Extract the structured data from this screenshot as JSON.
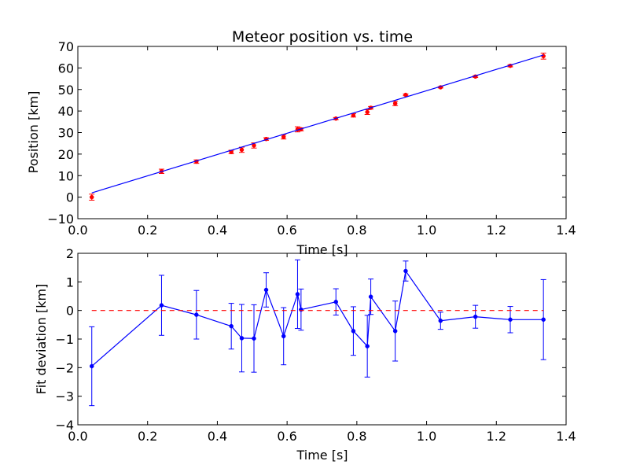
{
  "chart_data": [
    {
      "type": "scatter",
      "title": "Meteor position vs. time",
      "xlabel": "Time [s]",
      "ylabel": "Position [km]",
      "xlim": [
        0.0,
        1.4
      ],
      "ylim": [
        -10,
        70
      ],
      "xticks": [
        "0.0",
        "0.2",
        "0.4",
        "0.6",
        "0.8",
        "1.0",
        "1.2",
        "1.4"
      ],
      "yticks": [
        "−10",
        "0",
        "10",
        "20",
        "30",
        "40",
        "50",
        "60",
        "70"
      ],
      "grid": false,
      "series": [
        {
          "kind": "errorbar-points",
          "color": "#ff0000",
          "x": [
            0.04,
            0.24,
            0.34,
            0.44,
            0.47,
            0.505,
            0.54,
            0.59,
            0.63,
            0.64,
            0.74,
            0.79,
            0.83,
            0.84,
            0.91,
            0.94,
            1.04,
            1.14,
            1.24,
            1.335
          ],
          "y": [
            0.0,
            12.0,
            16.5,
            21.0,
            22.0,
            24.0,
            27.0,
            28.0,
            31.5,
            31.5,
            36.5,
            38.0,
            39.5,
            41.5,
            43.5,
            47.5,
            51.0,
            56.0,
            61.0,
            65.5
          ],
          "err": [
            1.4,
            1.0,
            0.8,
            0.8,
            1.2,
            1.2,
            0.6,
            1.0,
            1.2,
            0.7,
            0.5,
            0.8,
            1.1,
            0.6,
            1.0,
            0.4,
            0.3,
            0.4,
            0.5,
            1.4
          ]
        },
        {
          "kind": "line",
          "color": "#0000ff",
          "x": [
            0.04,
            1.335
          ],
          "y": [
            2.0,
            66.0
          ]
        }
      ]
    },
    {
      "type": "line",
      "title": "",
      "xlabel": "Time [s]",
      "ylabel": "Fit deviation [km]",
      "xlim": [
        0.0,
        1.4
      ],
      "ylim": [
        -4,
        2
      ],
      "xticks": [
        "0.0",
        "0.2",
        "0.4",
        "0.6",
        "0.8",
        "1.0",
        "1.2",
        "1.4"
      ],
      "yticks": [
        "−4",
        "−3",
        "−2",
        "−1",
        "0",
        "1",
        "2"
      ],
      "grid": false,
      "series": [
        {
          "kind": "errorbar-line",
          "color": "#0000ff",
          "x": [
            0.04,
            0.24,
            0.34,
            0.44,
            0.47,
            0.505,
            0.54,
            0.59,
            0.63,
            0.64,
            0.74,
            0.79,
            0.83,
            0.84,
            0.91,
            0.94,
            1.04,
            1.14,
            1.24,
            1.335
          ],
          "y": [
            -1.95,
            0.18,
            -0.15,
            -0.55,
            -0.97,
            -0.98,
            0.72,
            -0.9,
            0.57,
            0.03,
            0.3,
            -0.72,
            -1.25,
            0.48,
            -0.72,
            1.38,
            -0.36,
            -0.22,
            -0.32,
            -0.32
          ],
          "err": [
            1.38,
            1.05,
            0.85,
            0.8,
            1.18,
            1.18,
            0.6,
            1.0,
            1.2,
            0.72,
            0.46,
            0.85,
            1.08,
            0.62,
            1.05,
            0.35,
            0.3,
            0.4,
            0.46,
            1.4
          ]
        },
        {
          "kind": "dashed-line",
          "color": "#ff0000",
          "x": [
            0.04,
            1.335
          ],
          "y": [
            0,
            0
          ]
        }
      ]
    }
  ]
}
